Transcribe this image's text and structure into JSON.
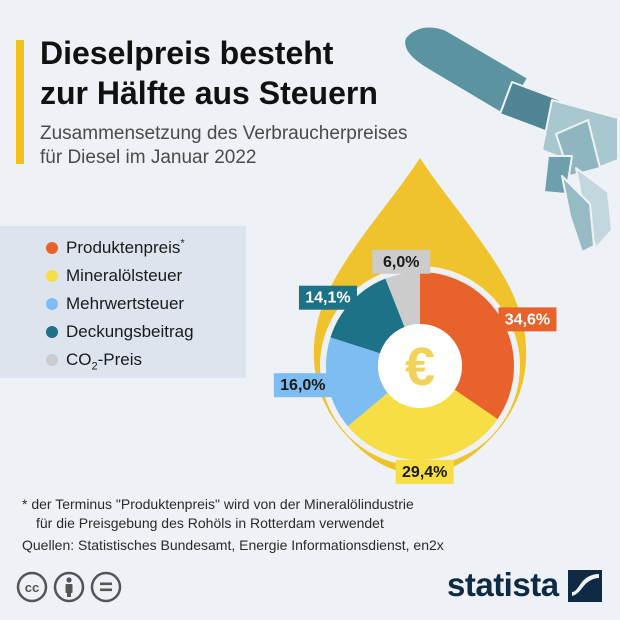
{
  "title_line1": "Dieselpreis besteht",
  "title_line2": "zur Hälfte aus Steuern",
  "subtitle_line1": "Zusammensetzung des Verbraucherpreises",
  "subtitle_line2": "für Diesel im Januar 2022",
  "legend": [
    {
      "label": "Produktenpreis",
      "sup": "*",
      "sub": "",
      "suffix": "",
      "color": "#e8632b"
    },
    {
      "label": "Mineralölsteuer",
      "sup": "",
      "sub": "",
      "suffix": "",
      "color": "#f7de45"
    },
    {
      "label": "Mehrwertsteuer",
      "sup": "",
      "sub": "",
      "suffix": "",
      "color": "#7ebdf2"
    },
    {
      "label": "Deckungsbeitrag",
      "sup": "",
      "sub": "",
      "suffix": "",
      "color": "#1e7287"
    },
    {
      "label": "CO",
      "sup": "",
      "sub": "2",
      "suffix": "-Preis",
      "color": "#cccccc"
    }
  ],
  "chart_data": {
    "type": "pie",
    "donut": true,
    "center_symbol": "€",
    "categories": [
      "Produktenpreis*",
      "Mineralölsteuer",
      "Mehrwertsteuer",
      "Deckungsbeitrag",
      "CO2-Preis"
    ],
    "values": [
      34.6,
      29.4,
      16.0,
      14.1,
      6.0
    ],
    "value_labels": [
      "34,6%",
      "29,4%",
      "16,0%",
      "14,1%",
      "6,0%"
    ],
    "colors": [
      "#e8632b",
      "#f7de45",
      "#7ebdf2",
      "#1e7287",
      "#cccccc"
    ],
    "title": "Dieselpreis besteht zur Hälfte aus Steuern",
    "legend_position": "left"
  },
  "footnote_line1": "* der Terminus \"Produktenpreis\" wird von der Mineralölindustrie",
  "footnote_line2": "für die Preisgebung des Rohöls in Rotterdam verwendet",
  "sources": "Quellen: Statistisches Bundesamt, Energie Informationsdienst, en2x",
  "license_icons": [
    "cc-icon",
    "attribution-icon",
    "no-derivatives-icon"
  ],
  "brand": "statista",
  "colors": {
    "accent": "#f2c21b",
    "drop": "#f0c32c",
    "nozzle": "#5b93a1",
    "brand": "#0f2a44"
  }
}
